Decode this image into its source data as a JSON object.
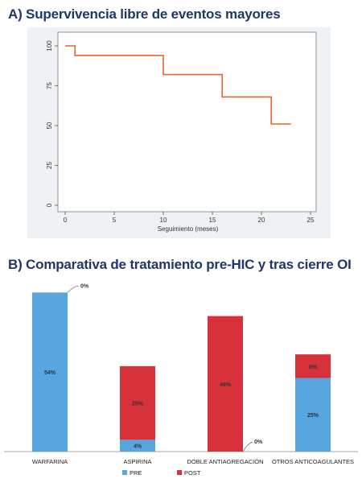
{
  "titles": {
    "a": "A) Supervivencia libre de eventos mayores",
    "b": "B) Comparativa de tratamiento pre-HIC y tras cierre OI"
  },
  "colors": {
    "line": "#e8662a",
    "pre": "#58a6e0",
    "post": "#d7313b"
  },
  "chart_data": [
    {
      "type": "line",
      "step": true,
      "title": "A) Supervivencia libre de eventos mayores",
      "xlabel": "Seguimiento (meses)",
      "ylabel": "",
      "xlim": [
        0,
        25
      ],
      "ylim": [
        0,
        100
      ],
      "xticks": [
        0,
        5,
        10,
        15,
        20,
        25
      ],
      "yticks": [
        0,
        25,
        50,
        75,
        100
      ],
      "grid": false,
      "x": [
        0,
        1,
        1,
        10,
        10,
        16,
        16,
        21,
        21,
        23
      ],
      "y": [
        100,
        100,
        94,
        94,
        82,
        82,
        68,
        68,
        51,
        51
      ]
    },
    {
      "type": "bar",
      "stacked": true,
      "title": "B) Comparativa de tratamiento pre-HIC y tras cierre OI",
      "categories": [
        "WARFARINA",
        "ASPIRINA",
        "DOBLE ANTIAGREGACIÓN",
        "OTROS ANTICOAGULANTES"
      ],
      "series": [
        {
          "name": "PRE",
          "values": [
            54,
            4,
            0,
            25
          ],
          "labels": [
            "54%",
            "4%",
            "0%",
            "25%"
          ]
        },
        {
          "name": "POST",
          "values": [
            0,
            25,
            46,
            8
          ],
          "labels": [
            "0%",
            "25%",
            "46%",
            "8%"
          ]
        }
      ],
      "ylim": [
        0,
        56
      ],
      "legend": "bottom"
    }
  ]
}
